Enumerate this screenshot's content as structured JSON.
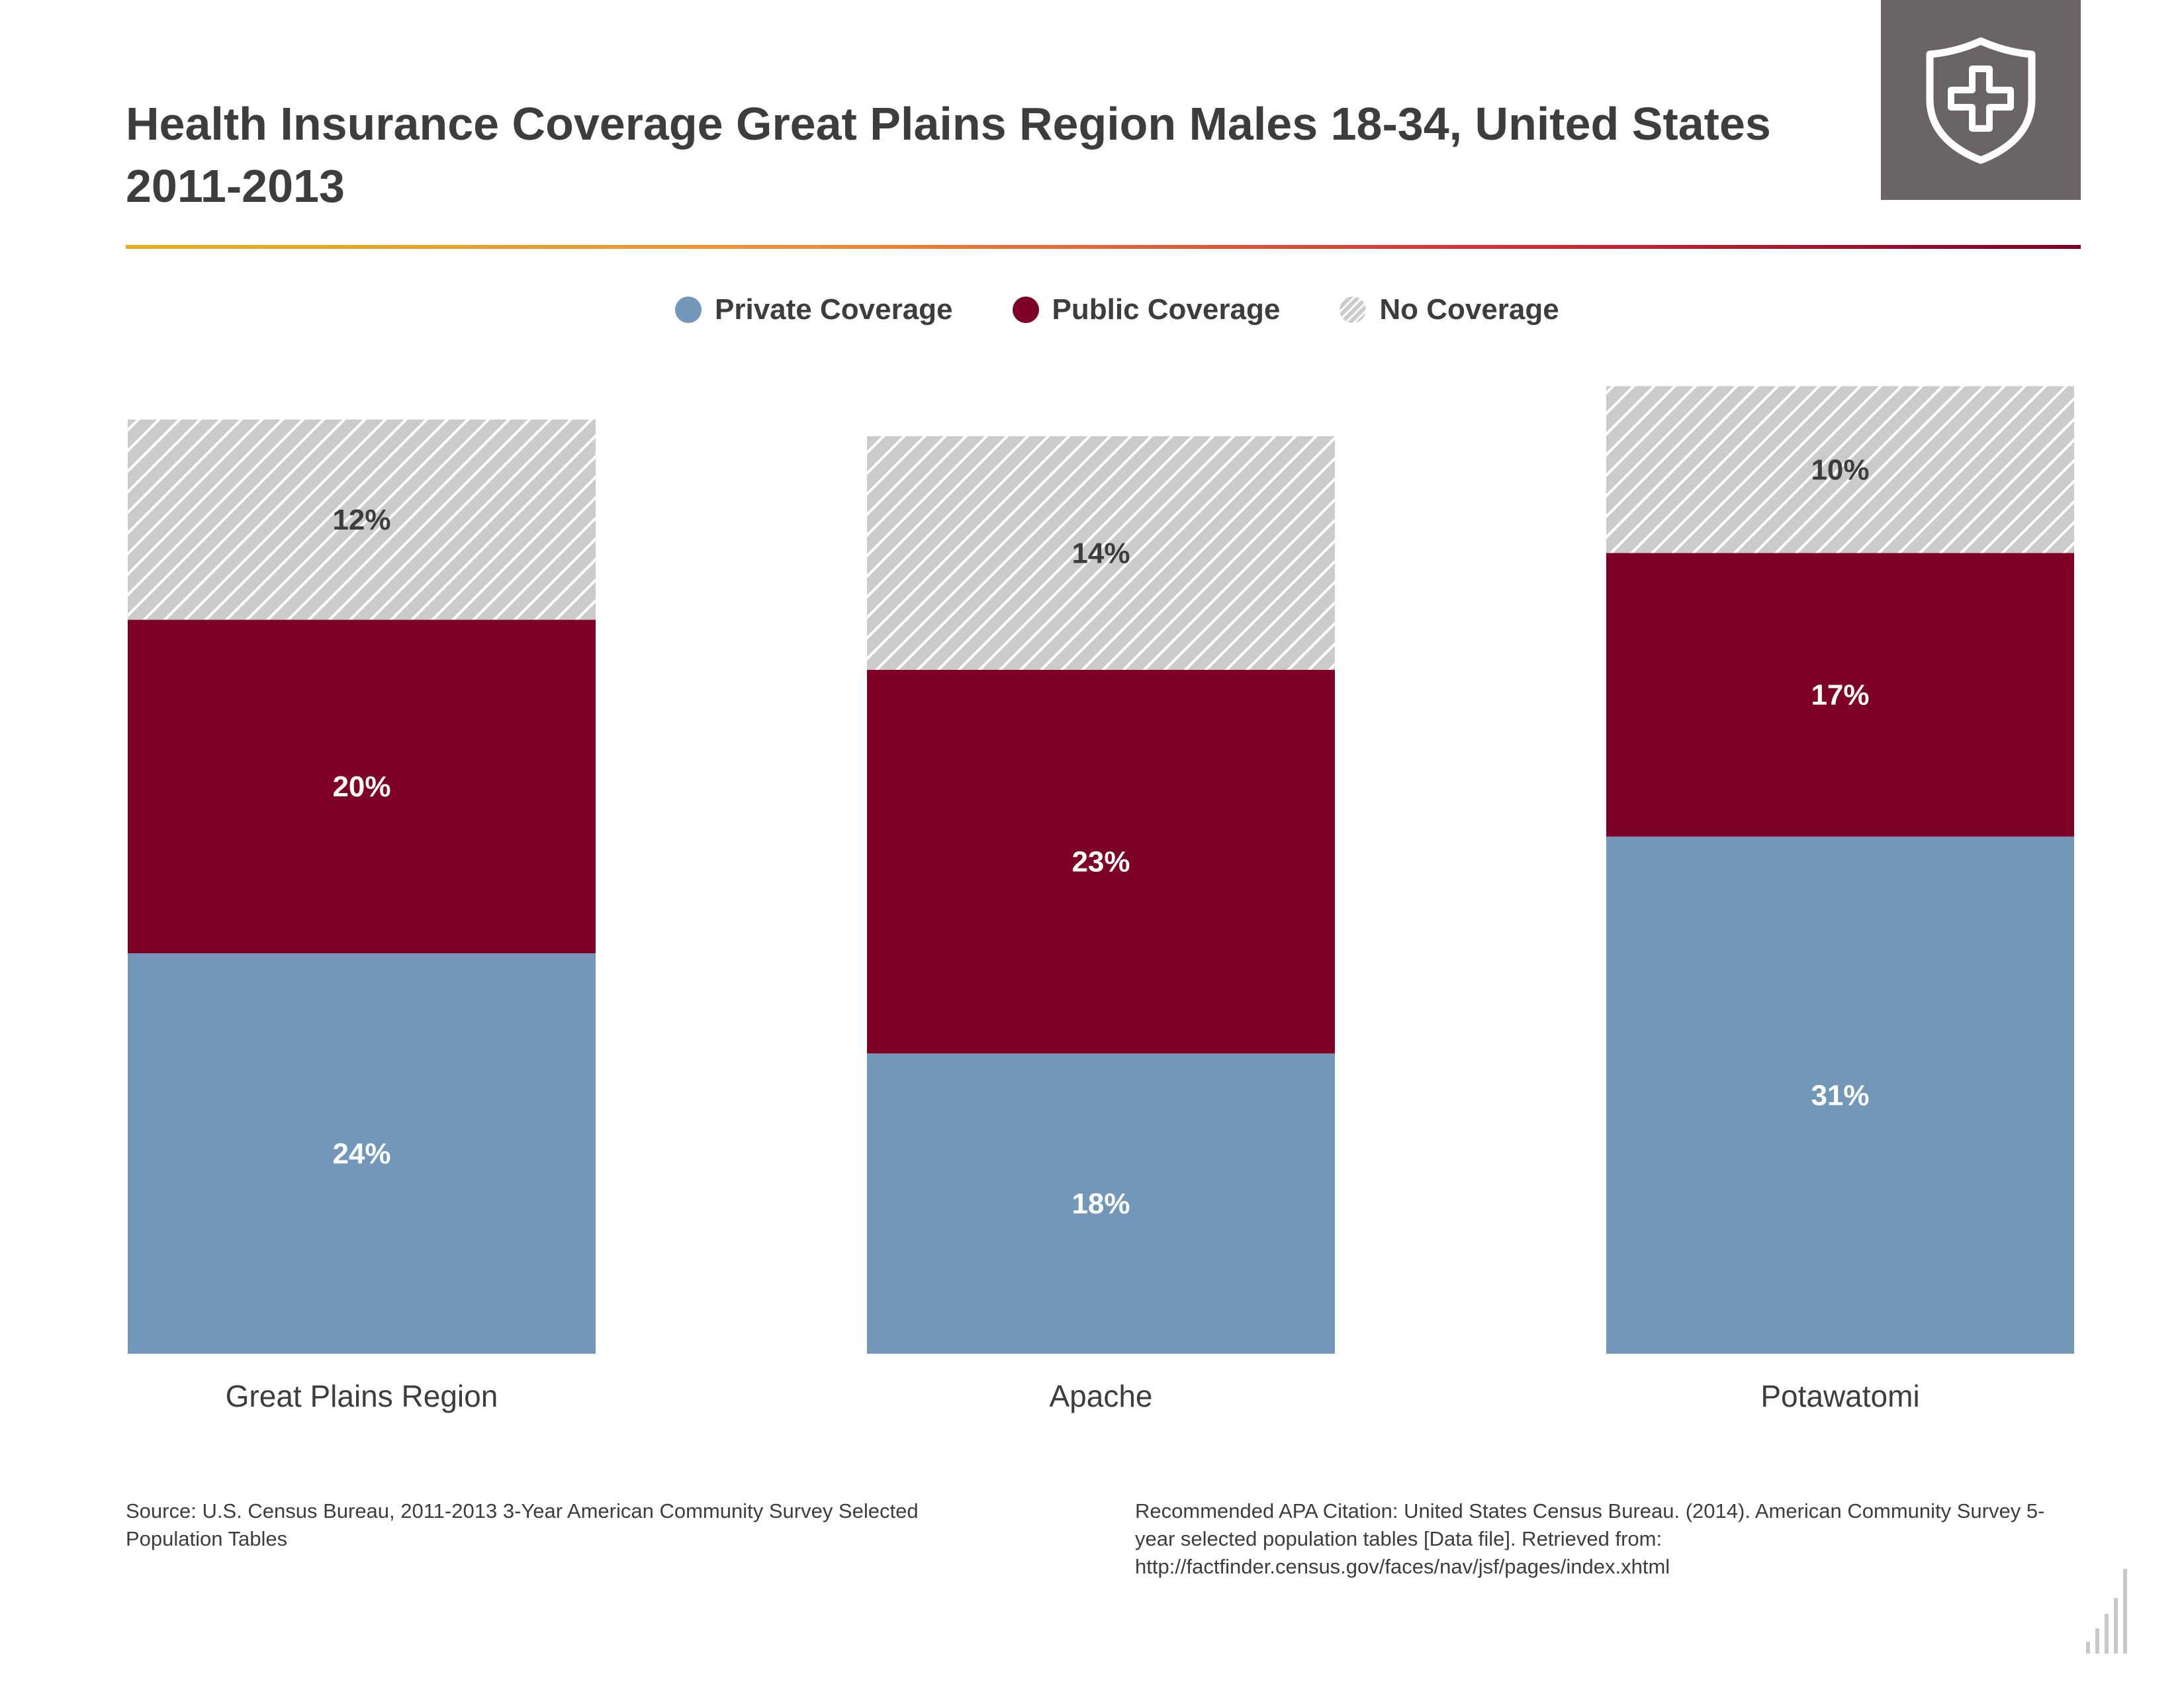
{
  "header": {
    "title_line1": "Health Insurance Coverage Great Plains Region Males 18-34, United States",
    "title_line2": "2011-2013",
    "badge_icon": "shield-plus-icon"
  },
  "colors": {
    "private": "#7397b8",
    "public": "#7d0026",
    "none": "#cbcbcb",
    "badge": "#6a6464",
    "text": "#3f3c3d",
    "rule_gradient": [
      "#e3b023",
      "#e8903a",
      "#c9353a",
      "#7d0026"
    ]
  },
  "legend": {
    "items": [
      {
        "label": "Private Coverage",
        "key": "private"
      },
      {
        "label": "Public Coverage",
        "key": "public"
      },
      {
        "label": "No Coverage",
        "key": "none"
      }
    ]
  },
  "chart_data": {
    "type": "bar",
    "stacked": true,
    "categories": [
      "Great Plains Region",
      "Apache",
      "Potawatomi"
    ],
    "series": [
      {
        "name": "Private Coverage",
        "values": [
          24,
          18,
          31
        ],
        "labels": [
          "24%",
          "18%",
          "31%"
        ]
      },
      {
        "name": "Public Coverage",
        "values": [
          20,
          23,
          17
        ],
        "labels": [
          "20%",
          "23%",
          "17%"
        ]
      },
      {
        "name": "No Coverage",
        "values": [
          12,
          14,
          10
        ],
        "labels": [
          "12%",
          "14%",
          "10%"
        ]
      }
    ],
    "title": "Health Insurance Coverage Great Plains Region Males 18-34, United States 2011-2013",
    "xlabel": "",
    "ylabel": "",
    "grid": false,
    "legend_position": "top-center"
  },
  "footer": {
    "source": "Source: U.S. Census Bureau, 2011-2013 3-Year American Community Survey Selected Population Tables",
    "citation": "Recommended APA Citation: United States Census Bureau. (2014). American Community Survey 5-year selected population tables [Data file]. Retrieved from: http://factfinder.census.gov/faces/nav/jsf/pages/index.xhtml"
  }
}
